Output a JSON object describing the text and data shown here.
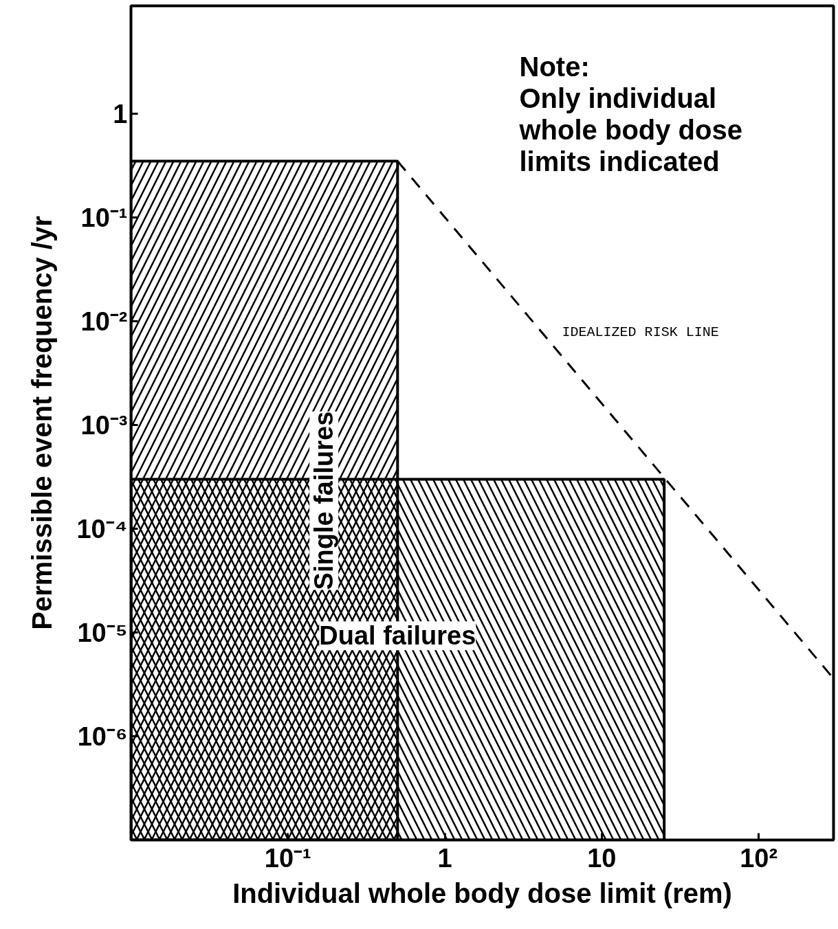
{
  "chart_data": {
    "type": "area",
    "xlabel": "Individual whole body dose limit (rem)",
    "ylabel": "Permissible event frequency /yr",
    "log": "xy",
    "xlim": [
      0.01,
      300
    ],
    "ylim": [
      1e-07,
      11
    ],
    "xticks": [
      {
        "value": 0.1,
        "label": "10⁻¹"
      },
      1,
      10,
      {
        "value": 100,
        "label": "10²"
      }
    ],
    "yticks": [
      {
        "value": 1e-06,
        "label": "10⁻⁶"
      },
      {
        "value": 1e-05,
        "label": "10⁻⁵"
      },
      {
        "value": 0.0001,
        "label": "10⁻⁴"
      },
      {
        "value": 0.001,
        "label": "10⁻³"
      },
      {
        "value": 0.01,
        "label": "10⁻²"
      },
      {
        "value": 0.1,
        "label": "10⁻¹"
      },
      1
    ],
    "grid": false,
    "series": [
      {
        "name": "Single failures",
        "color": "#000000",
        "x": [
          0.01,
          0.5
        ],
        "values": [
          0.35,
          0.35
        ]
      },
      {
        "name": "Dual failures",
        "color": "#000000",
        "x": [
          0.01,
          25
        ],
        "values": [
          0.0003,
          0.0003
        ]
      },
      {
        "name": "IDEALIZED RISK LINE",
        "type": "line",
        "line_style": "dashed",
        "color": "#000000",
        "x": [
          0.5,
          300
        ],
        "values": [
          0.35,
          3.6e-06
        ]
      }
    ],
    "annotations": [
      "Note:\nOnly individual\nwhole body dose\nlimits indicated"
    ]
  }
}
